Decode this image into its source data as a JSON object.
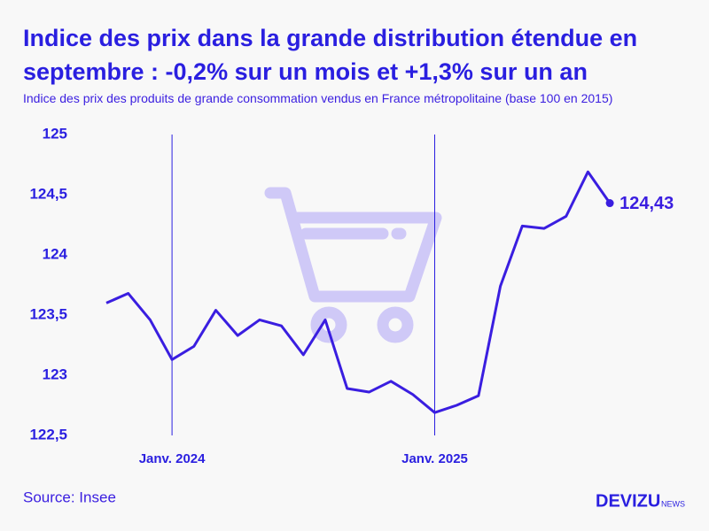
{
  "chart_data": {
    "type": "line",
    "title": "Indice des prix dans la grande distribution étendue en septembre : -0,2% sur un mois et +1,3% sur un an",
    "subtitle": "Indice des prix des produits de grande consommation vendus en France métropolitaine (base 100 en 2015)",
    "categories": [
      null,
      null,
      null,
      "Janv. 2024",
      null,
      null,
      null,
      null,
      null,
      null,
      null,
      null,
      null,
      null,
      null,
      "Janv. 2025",
      null,
      null,
      null,
      null,
      null,
      null,
      null,
      null
    ],
    "series": [
      {
        "color": "#3a1ee0",
        "values": [
          123.6,
          123.68,
          123.46,
          123.13,
          123.24,
          123.54,
          123.33,
          123.46,
          123.41,
          123.17,
          123.46,
          122.89,
          122.86,
          122.95,
          122.84,
          122.69,
          122.75,
          122.83,
          123.74,
          124.24,
          124.22,
          124.32,
          124.69,
          124.43
        ],
        "value_labels": [
          null,
          null,
          null,
          null,
          null,
          null,
          null,
          null,
          null,
          null,
          null,
          null,
          null,
          null,
          null,
          null,
          null,
          null,
          null,
          null,
          null,
          null,
          null,
          "124,43"
        ]
      }
    ],
    "ylim": [
      122.5,
      125
    ],
    "yticks": [
      {
        "value": 122.5,
        "label": "122,5"
      },
      123,
      {
        "value": 123.5,
        "label": "123,5"
      },
      124,
      {
        "value": 124.5,
        "label": "124,5"
      },
      125
    ],
    "source": "Source: Insee"
  },
  "brand": {
    "name": "DEVIZU",
    "suffix": "NEWS"
  }
}
